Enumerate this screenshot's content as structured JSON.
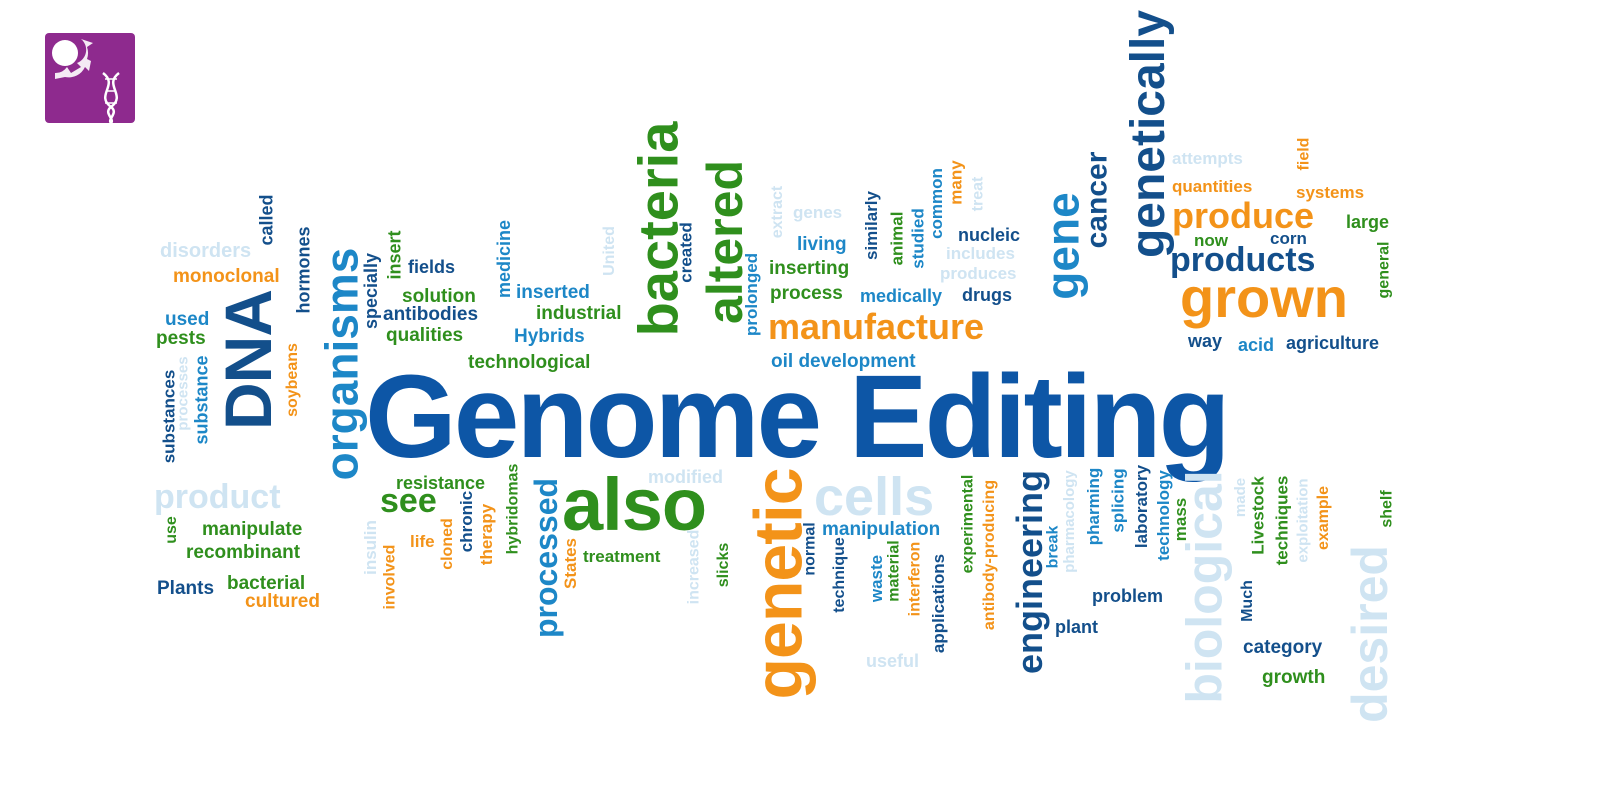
{
  "logo": {
    "icon": "dna-gear-logo-icon",
    "color": "#8e2a8e"
  },
  "palette": {
    "navy": "#134f8b",
    "blue": "#1d87c7",
    "green": "#2f8f1d",
    "orange": "#f39319",
    "pale": "#cfe4f2"
  },
  "words": [
    {
      "text": "Genome Editing",
      "color": "#0d56a6"
    },
    {
      "text": "DNA",
      "color": "#134f8b"
    },
    {
      "text": "organisms",
      "color": "#1d87c7"
    },
    {
      "text": "bacteria",
      "color": "#2f8f1d"
    },
    {
      "text": "altered",
      "color": "#2f8f1d"
    },
    {
      "text": "also",
      "color": "#2f8f1d"
    },
    {
      "text": "genetic",
      "color": "#f39319"
    },
    {
      "text": "gene",
      "color": "#1d87c7"
    },
    {
      "text": "genetically",
      "color": "#134f8b"
    },
    {
      "text": "cancer",
      "color": "#134f8b"
    },
    {
      "text": "produce",
      "color": "#f39319"
    },
    {
      "text": "products",
      "color": "#134f8b"
    },
    {
      "text": "grown",
      "color": "#f39319"
    },
    {
      "text": "manufacture",
      "color": "#f39319"
    },
    {
      "text": "cells",
      "color": "#cfe4f2"
    },
    {
      "text": "product",
      "color": "#cfe4f2"
    },
    {
      "text": "biological",
      "color": "#cfe4f2"
    },
    {
      "text": "desired",
      "color": "#cfe4f2"
    },
    {
      "text": "engineering",
      "color": "#134f8b"
    },
    {
      "text": "processed",
      "color": "#1d87c7"
    },
    {
      "text": "see",
      "color": "#2f8f1d"
    },
    {
      "text": "disorders",
      "color": "#cfe4f2"
    },
    {
      "text": "monoclonal",
      "color": "#f39319"
    },
    {
      "text": "called",
      "color": "#134f8b"
    },
    {
      "text": "hormones",
      "color": "#134f8b"
    },
    {
      "text": "specially",
      "color": "#134f8b"
    },
    {
      "text": "insert",
      "color": "#2f8f1d"
    },
    {
      "text": "fields",
      "color": "#134f8b"
    },
    {
      "text": "solution",
      "color": "#2f8f1d"
    },
    {
      "text": "antibodies",
      "color": "#134f8b"
    },
    {
      "text": "qualities",
      "color": "#2f8f1d"
    },
    {
      "text": "medicine",
      "color": "#1d87c7"
    },
    {
      "text": "inserted",
      "color": "#1d87c7"
    },
    {
      "text": "industrial",
      "color": "#2f8f1d"
    },
    {
      "text": "Hybrids",
      "color": "#1d87c7"
    },
    {
      "text": "technological",
      "color": "#2f8f1d"
    },
    {
      "text": "United",
      "color": "#cfe4f2"
    },
    {
      "text": "created",
      "color": "#134f8b"
    },
    {
      "text": "used",
      "color": "#1d87c7"
    },
    {
      "text": "pests",
      "color": "#2f8f1d"
    },
    {
      "text": "soybeans",
      "color": "#f39319"
    },
    {
      "text": "substance",
      "color": "#1d87c7"
    },
    {
      "text": "substances",
      "color": "#134f8b"
    },
    {
      "text": "processes",
      "color": "#cfe4f2"
    },
    {
      "text": "prolonged",
      "color": "#1d87c7"
    },
    {
      "text": "extract",
      "color": "#cfe4f2"
    },
    {
      "text": "genes",
      "color": "#cfe4f2"
    },
    {
      "text": "living",
      "color": "#1d87c7"
    },
    {
      "text": "inserting",
      "color": "#2f8f1d"
    },
    {
      "text": "process",
      "color": "#2f8f1d"
    },
    {
      "text": "similarly",
      "color": "#134f8b"
    },
    {
      "text": "animal",
      "color": "#2f8f1d"
    },
    {
      "text": "studied",
      "color": "#1d87c7"
    },
    {
      "text": "common",
      "color": "#1d87c7"
    },
    {
      "text": "many",
      "color": "#f39319"
    },
    {
      "text": "treat",
      "color": "#cfe4f2"
    },
    {
      "text": "nucleic",
      "color": "#134f8b"
    },
    {
      "text": "includes",
      "color": "#cfe4f2"
    },
    {
      "text": "produces",
      "color": "#cfe4f2"
    },
    {
      "text": "medically",
      "color": "#1d87c7"
    },
    {
      "text": "drugs",
      "color": "#134f8b"
    },
    {
      "text": "oil development",
      "color": "#1d87c7"
    },
    {
      "text": "attempts",
      "color": "#cfe4f2"
    },
    {
      "text": "quantities",
      "color": "#f39319"
    },
    {
      "text": "field",
      "color": "#f39319"
    },
    {
      "text": "systems",
      "color": "#f39319"
    },
    {
      "text": "large",
      "color": "#2f8f1d"
    },
    {
      "text": "now",
      "color": "#2f8f1d"
    },
    {
      "text": "corn",
      "color": "#134f8b"
    },
    {
      "text": "general",
      "color": "#2f8f1d"
    },
    {
      "text": "way",
      "color": "#134f8b"
    },
    {
      "text": "acid",
      "color": "#1d87c7"
    },
    {
      "text": "agriculture",
      "color": "#134f8b"
    },
    {
      "text": "resistance",
      "color": "#2f8f1d"
    },
    {
      "text": "modified",
      "color": "#cfe4f2"
    },
    {
      "text": "manipulate",
      "color": "#2f8f1d"
    },
    {
      "text": "recombinant",
      "color": "#2f8f1d"
    },
    {
      "text": "use",
      "color": "#2f8f1d"
    },
    {
      "text": "Plants",
      "color": "#134f8b"
    },
    {
      "text": "bacterial",
      "color": "#2f8f1d"
    },
    {
      "text": "cultured",
      "color": "#f39319"
    },
    {
      "text": "insulin",
      "color": "#cfe4f2"
    },
    {
      "text": "involved",
      "color": "#f39319"
    },
    {
      "text": "life",
      "color": "#f39319"
    },
    {
      "text": "cloned",
      "color": "#f39319"
    },
    {
      "text": "chronic",
      "color": "#134f8b"
    },
    {
      "text": "therapy",
      "color": "#f39319"
    },
    {
      "text": "hybridomas",
      "color": "#2f8f1d"
    },
    {
      "text": "States",
      "color": "#f39319"
    },
    {
      "text": "treatment",
      "color": "#2f8f1d"
    },
    {
      "text": "increased",
      "color": "#cfe4f2"
    },
    {
      "text": "slicks",
      "color": "#2f8f1d"
    },
    {
      "text": "manipulation",
      "color": "#1d87c7"
    },
    {
      "text": "normal",
      "color": "#134f8b"
    },
    {
      "text": "technique",
      "color": "#134f8b"
    },
    {
      "text": "waste",
      "color": "#1d87c7"
    },
    {
      "text": "material",
      "color": "#2f8f1d"
    },
    {
      "text": "interferon",
      "color": "#f39319"
    },
    {
      "text": "applications",
      "color": "#134f8b"
    },
    {
      "text": "useful",
      "color": "#cfe4f2"
    },
    {
      "text": "experimental",
      "color": "#2f8f1d"
    },
    {
      "text": "antibody-producing",
      "color": "#f39319"
    },
    {
      "text": "break",
      "color": "#1d87c7"
    },
    {
      "text": "pharmacology",
      "color": "#cfe4f2"
    },
    {
      "text": "pharming",
      "color": "#1d87c7"
    },
    {
      "text": "splicing",
      "color": "#1d87c7"
    },
    {
      "text": "laboratory",
      "color": "#134f8b"
    },
    {
      "text": "technology",
      "color": "#1d87c7"
    },
    {
      "text": "mass",
      "color": "#2f8f1d"
    },
    {
      "text": "problem",
      "color": "#134f8b"
    },
    {
      "text": "plant",
      "color": "#134f8b"
    },
    {
      "text": "made",
      "color": "#cfe4f2"
    },
    {
      "text": "Livestock",
      "color": "#2f8f1d"
    },
    {
      "text": "techniques",
      "color": "#2f8f1d"
    },
    {
      "text": "exploitation",
      "color": "#cfe4f2"
    },
    {
      "text": "example",
      "color": "#f39319"
    },
    {
      "text": "shelf",
      "color": "#2f8f1d"
    },
    {
      "text": "Much",
      "color": "#134f8b"
    },
    {
      "text": "category",
      "color": "#134f8b"
    },
    {
      "text": "growth",
      "color": "#2f8f1d"
    }
  ]
}
